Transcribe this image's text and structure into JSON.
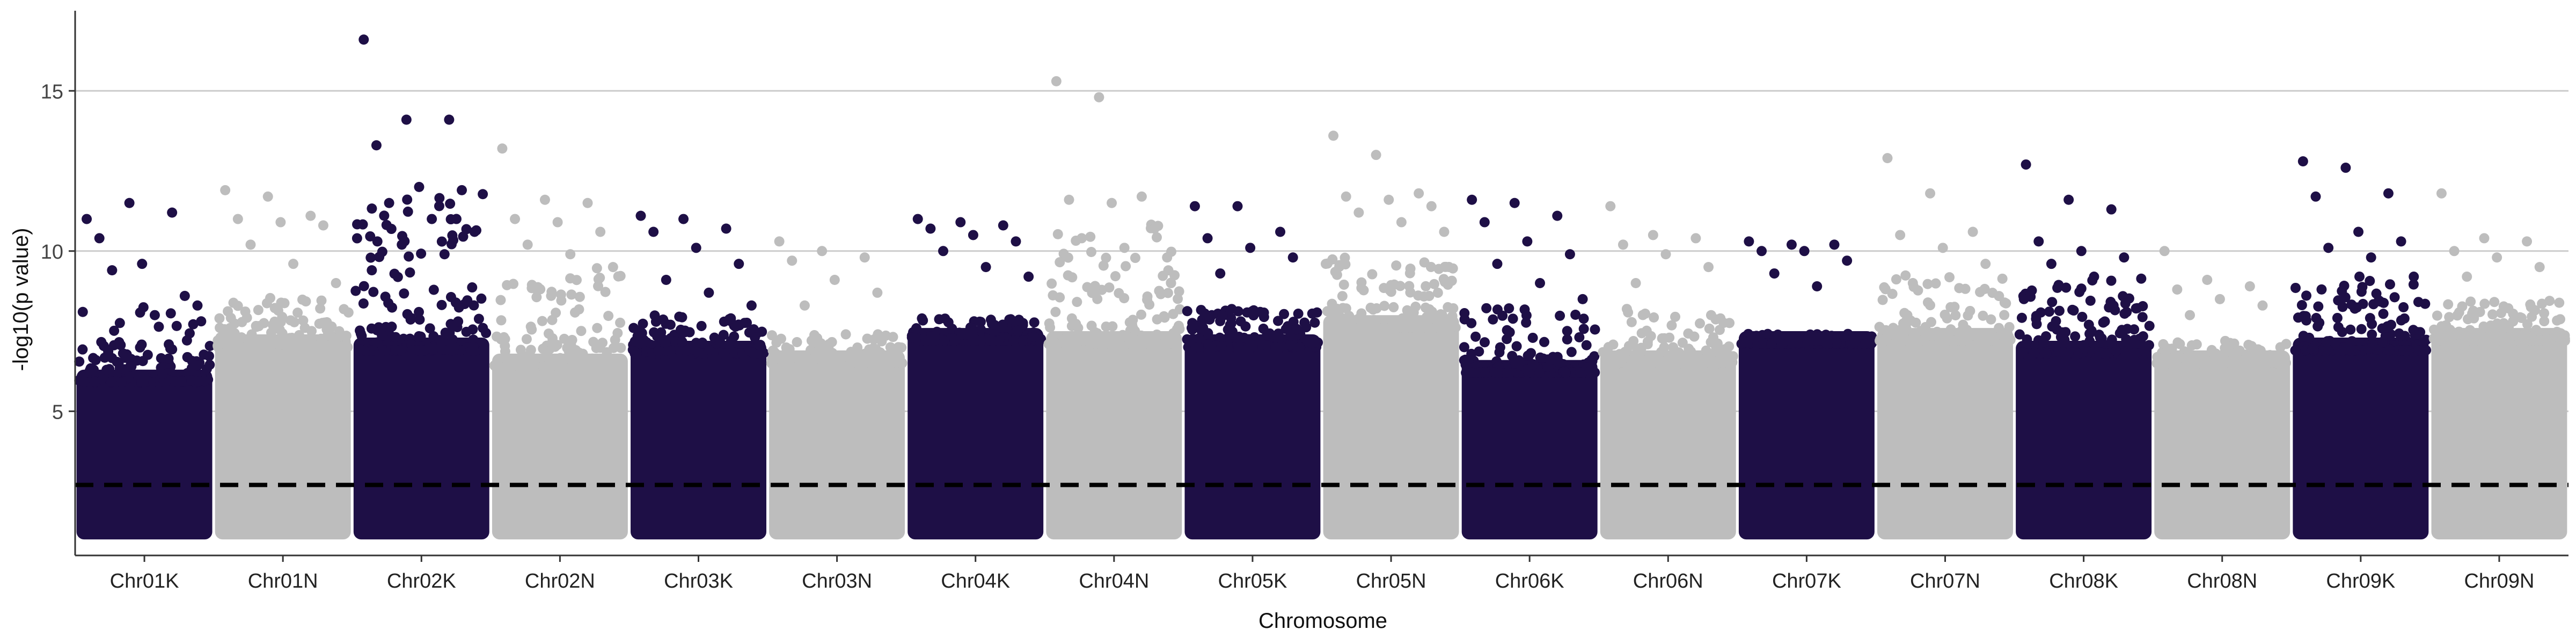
{
  "chart_data": {
    "type": "scatter",
    "subtype": "manhattan",
    "title": "",
    "xlabel": "Chromosome",
    "ylabel": "-log10(p value)",
    "ylim": [
      0.5,
      17.5
    ],
    "y_ticks": [
      5,
      10,
      15
    ],
    "grid": "horizontal major lines only",
    "threshold": {
      "y": 2.7,
      "style": "dashed",
      "color": "#000000"
    },
    "colors": {
      "odd": "#1e0f46",
      "even": "#bdbdbd",
      "grid": "#cccccc",
      "axis": "#333333"
    },
    "categories": [
      "Chr01K",
      "Chr01N",
      "Chr02K",
      "Chr02N",
      "Chr03K",
      "Chr03N",
      "Chr04K",
      "Chr04N",
      "Chr05K",
      "Chr05N",
      "Chr06K",
      "Chr06N",
      "Chr07K",
      "Chr07N",
      "Chr08K",
      "Chr08N",
      "Chr09K",
      "Chr09N"
    ],
    "bulk_min": 1.0,
    "bulk_top": [
      6.3,
      7.4,
      7.3,
      6.8,
      7.2,
      6.9,
      7.6,
      7.5,
      7.4,
      8.0,
      6.6,
      6.9,
      7.5,
      7.6,
      7.2,
      6.9,
      7.3,
      7.6
    ],
    "max_y": [
      11.5,
      11.9,
      16.6,
      13.2,
      11.1,
      10.3,
      11.0,
      15.3,
      11.4,
      13.6,
      11.6,
      11.4,
      10.3,
      12.9,
      12.7,
      10.0,
      12.8,
      11.8
    ],
    "peaks": [
      {
        "chrom": "Chr01K",
        "y": [
          11.0,
          11.5,
          11.2,
          10.4,
          9.6,
          8.6,
          9.4,
          8.0,
          8.3
        ]
      },
      {
        "chrom": "Chr01N",
        "y": [
          11.9,
          11.7,
          11.1,
          11.0,
          10.9,
          10.8,
          10.2,
          9.6,
          9.0
        ]
      },
      {
        "chrom": "Chr02K",
        "y": [
          16.6,
          14.1,
          14.1,
          13.3,
          12.0,
          11.9,
          11.5,
          11.0,
          10.6,
          10.2,
          9.9,
          9.4
        ]
      },
      {
        "chrom": "Chr02N",
        "y": [
          13.2,
          11.6,
          11.5,
          11.0,
          10.9,
          10.6,
          10.2,
          9.9,
          9.5
        ]
      },
      {
        "chrom": "Chr03K",
        "y": [
          11.1,
          11.0,
          10.7,
          10.6,
          10.1,
          9.6,
          9.1,
          8.7,
          8.3
        ]
      },
      {
        "chrom": "Chr03N",
        "y": [
          10.3,
          10.0,
          9.8,
          9.7,
          9.1,
          8.7,
          8.3
        ]
      },
      {
        "chrom": "Chr04K",
        "y": [
          11.0,
          10.9,
          10.8,
          10.7,
          10.5,
          10.3,
          10.0,
          9.5,
          9.2
        ]
      },
      {
        "chrom": "Chr04N",
        "y": [
          15.3,
          14.8,
          11.7,
          11.6,
          11.5,
          10.7,
          10.4,
          10.1,
          9.8
        ]
      },
      {
        "chrom": "Chr05K",
        "y": [
          11.4,
          11.4,
          10.6,
          10.4,
          10.1,
          9.8,
          9.3
        ]
      },
      {
        "chrom": "Chr05N",
        "y": [
          13.6,
          13.0,
          11.8,
          11.7,
          11.6,
          11.4,
          11.2,
          10.9,
          10.6
        ]
      },
      {
        "chrom": "Chr06K",
        "y": [
          11.6,
          11.5,
          11.1,
          10.9,
          10.3,
          9.9,
          9.6,
          9.0,
          8.5
        ]
      },
      {
        "chrom": "Chr06N",
        "y": [
          11.4,
          10.5,
          10.4,
          10.2,
          9.9,
          9.5,
          9.0
        ]
      },
      {
        "chrom": "Chr07K",
        "y": [
          10.3,
          10.2,
          10.2,
          10.0,
          10.0,
          9.7,
          9.3,
          8.9
        ]
      },
      {
        "chrom": "Chr07N",
        "y": [
          12.9,
          11.8,
          10.6,
          10.5,
          10.1,
          9.6,
          9.0
        ]
      },
      {
        "chrom": "Chr08K",
        "y": [
          12.7,
          11.6,
          11.3,
          10.3,
          10.0,
          9.8,
          9.6,
          9.2
        ]
      },
      {
        "chrom": "Chr08N",
        "y": [
          10.0,
          9.1,
          8.9,
          8.8,
          8.5,
          8.3,
          8.0
        ]
      },
      {
        "chrom": "Chr09K",
        "y": [
          12.8,
          12.6,
          11.8,
          11.7,
          10.6,
          10.3,
          10.1,
          9.8,
          9.2
        ]
      },
      {
        "chrom": "Chr09N",
        "y": [
          11.8,
          10.4,
          10.3,
          10.0,
          9.8,
          9.5,
          9.2
        ]
      }
    ]
  }
}
